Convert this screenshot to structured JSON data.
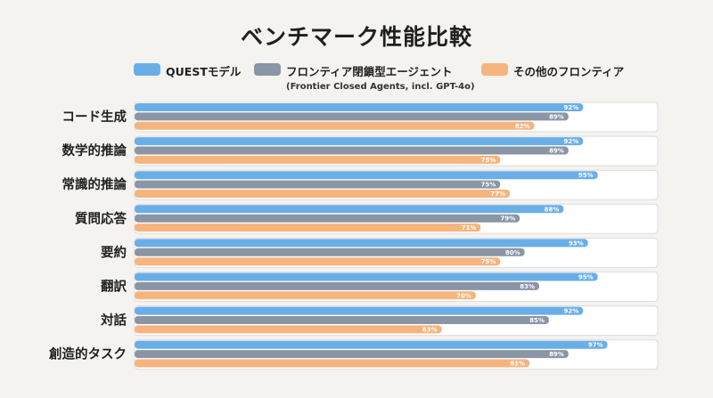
{
  "chart_data": {
    "type": "bar",
    "title": "ベンチマーク性能比較",
    "categories": [
      "コード生成",
      "数学的推論",
      "常識的推論",
      "質問応答",
      "要約",
      "翻訳",
      "対話",
      "創造的タスク"
    ],
    "series": [
      {
        "name": "QUESTモデル",
        "values": [
          92,
          92,
          95,
          88,
          93,
          95,
          92,
          97
        ],
        "color": "#6aaee8"
      },
      {
        "name": "フロンティア閉鎖型エージェント",
        "subtitle": "(Frontier Closed Agents, incl. GPT-4o)",
        "values": [
          89,
          89,
          75,
          79,
          80,
          83,
          85,
          89
        ],
        "color": "#8a95a5"
      },
      {
        "name": "その他のフロンティア",
        "values": [
          82,
          75,
          77,
          71,
          75,
          70,
          63,
          81
        ],
        "color": "#f6b47e"
      }
    ],
    "value_suffix": "%",
    "orientation": "horizontal",
    "legend_position": "top"
  }
}
